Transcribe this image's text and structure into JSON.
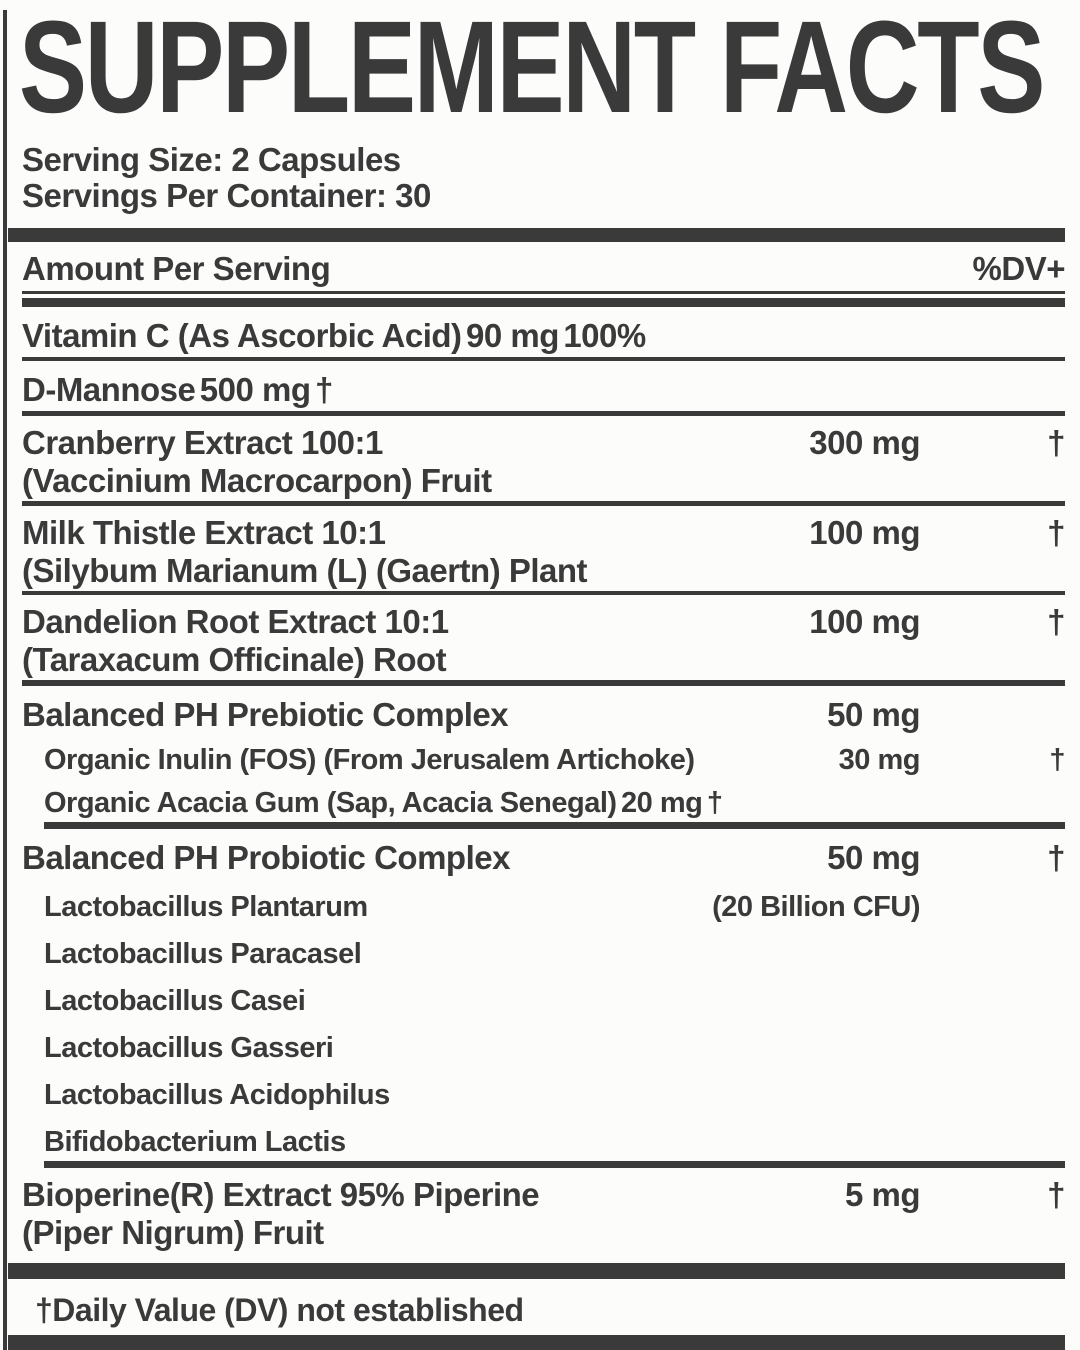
{
  "title": "SUPPLEMENT FACTS",
  "serving_info": {
    "serving_size": "Serving Size: 2 Capsules",
    "servings_per_container": "Servings Per Container: 30"
  },
  "table": {
    "header": {
      "amount_label": "Amount Per Serving",
      "dv_label": "%DV+"
    },
    "rows": [
      {
        "name": "Vitamin C (As Ascorbic Acid)",
        "amount": "90 mg",
        "dv": "100%"
      },
      {
        "name": "D-Mannose",
        "amount": "500 mg",
        "dv": "†"
      },
      {
        "name": "Cranberry Extract 100:1",
        "name2": "(Vaccinium Macrocarpon) Fruit",
        "amount": "300 mg",
        "dv": "†"
      },
      {
        "name": "Milk Thistle Extract 10:1",
        "name2": "(Silybum Marianum (L) (Gaertn) Plant",
        "amount": "100 mg",
        "dv": "†"
      },
      {
        "name": "Dandelion Root Extract 10:1",
        "name2": "(Taraxacum Officinale) Root",
        "amount": "100 mg",
        "dv": "†"
      },
      {
        "name": "Balanced PH Prebiotic Complex",
        "amount": "50 mg",
        "dv": ""
      },
      {
        "name": "Organic Inulin (FOS) (From Jerusalem Artichoke)",
        "amount": "30 mg",
        "dv": "†"
      },
      {
        "name": "Organic Acacia Gum (Sap, Acacia Senegal)",
        "amount": "20 mg",
        "dv": "†"
      },
      {
        "name": "Balanced PH Probiotic Complex",
        "amount": "50 mg",
        "dv": "†"
      },
      {
        "name": "Lactobacillus Plantarum",
        "amount": "(20 Billion CFU)",
        "dv": ""
      },
      {
        "name": "Lactobacillus Paracasel",
        "amount": "",
        "dv": ""
      },
      {
        "name": "Lactobacillus Casei",
        "amount": "",
        "dv": ""
      },
      {
        "name": "Lactobacillus Gasseri",
        "amount": "",
        "dv": ""
      },
      {
        "name": "Lactobacillus Acidophilus",
        "amount": "",
        "dv": ""
      },
      {
        "name": "Bifidobacterium Lactis",
        "amount": "",
        "dv": ""
      },
      {
        "name": "Bioperine(R) Extract 95% Piperine",
        "name2": "(Piper Nigrum) Fruit",
        "amount": "5 mg",
        "dv": "†"
      }
    ]
  },
  "footnote": "†Daily Value (DV) not established",
  "colors": {
    "ink": "#3a3a3a",
    "background": "#fcfcfb"
  }
}
